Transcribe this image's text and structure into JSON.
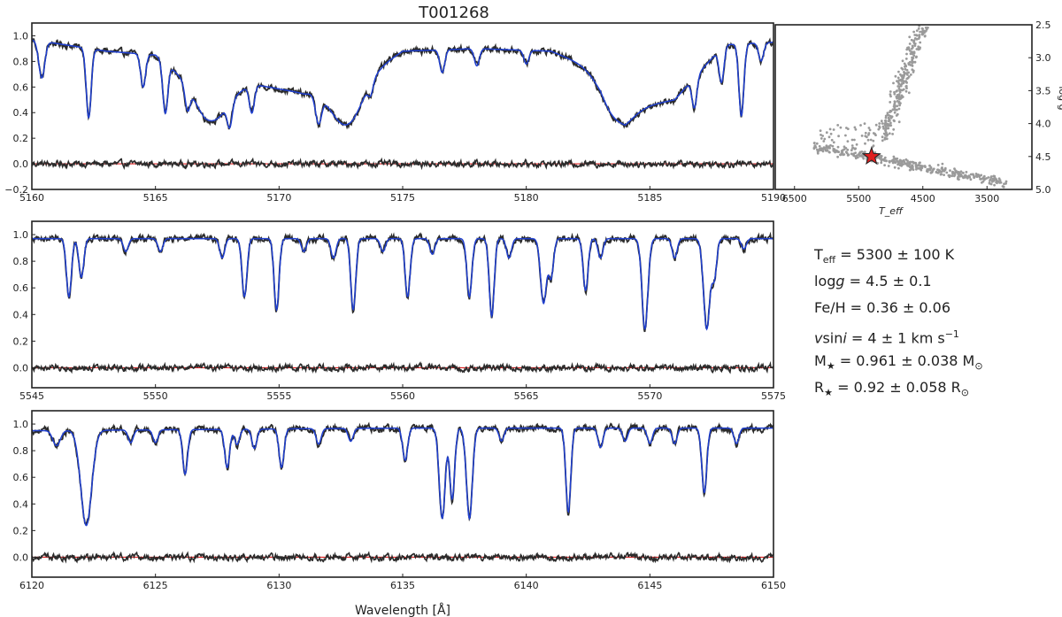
{
  "chart_data": [
    {
      "type": "line",
      "panel": "spectrum-1",
      "title": "T001268",
      "xlim": [
        5160,
        5190
      ],
      "ylim": [
        -0.2,
        1.1
      ],
      "xticks": [
        5160,
        5165,
        5170,
        5175,
        5180,
        5185,
        5190
      ],
      "yticks": [
        -0.2,
        0.0,
        0.2,
        0.4,
        0.6,
        0.8,
        1.0
      ],
      "xtick_labels": [
        "5160",
        "5165",
        "5170",
        "5175",
        "5180",
        "5185",
        "5190"
      ],
      "ytick_labels": [
        "−0.2",
        "0.0",
        "0.2",
        "0.4",
        "0.6",
        "0.8",
        "1.0"
      ],
      "continuum": [
        [
          5160,
          0.97
        ],
        [
          5163,
          0.88
        ],
        [
          5165,
          0.85
        ],
        [
          5167,
          0.55
        ],
        [
          5169,
          0.62
        ],
        [
          5171,
          0.55
        ],
        [
          5173,
          0.62
        ],
        [
          5175,
          0.88
        ],
        [
          5178,
          0.9
        ],
        [
          5181,
          0.88
        ],
        [
          5183,
          0.72
        ],
        [
          5184,
          0.42
        ],
        [
          5186,
          0.5
        ],
        [
          5188,
          0.93
        ],
        [
          5190,
          0.95
        ]
      ],
      "lines": [
        {
          "x": 5160.4,
          "depth": 0.3,
          "width": 0.12
        },
        {
          "x": 5162.3,
          "depth": 0.6,
          "width": 0.1
        },
        {
          "x": 5164.5,
          "depth": 0.3,
          "width": 0.1
        },
        {
          "x": 5165.4,
          "depth": 0.5,
          "width": 0.1
        },
        {
          "x": 5166.3,
          "depth": 0.3,
          "width": 0.1
        },
        {
          "x": 5167.3,
          "depth": 0.4,
          "width": 0.6
        },
        {
          "x": 5168.0,
          "depth": 0.4,
          "width": 0.1
        },
        {
          "x": 5168.9,
          "depth": 0.35,
          "width": 0.1
        },
        {
          "x": 5171.6,
          "depth": 0.4,
          "width": 0.12
        },
        {
          "x": 5172.7,
          "depth": 0.5,
          "width": 0.6
        },
        {
          "x": 5173.7,
          "depth": 0.15,
          "width": 0.1
        },
        {
          "x": 5176.6,
          "depth": 0.2,
          "width": 0.1
        },
        {
          "x": 5178.0,
          "depth": 0.15,
          "width": 0.1
        },
        {
          "x": 5180.0,
          "depth": 0.12,
          "width": 0.1
        },
        {
          "x": 5183.6,
          "depth": 0.35,
          "width": 0.6
        },
        {
          "x": 5186.8,
          "depth": 0.35,
          "width": 0.1
        },
        {
          "x": 5187.9,
          "depth": 0.3,
          "width": 0.1
        },
        {
          "x": 5188.7,
          "depth": 0.6,
          "width": 0.1
        },
        {
          "x": 5189.5,
          "depth": 0.15,
          "width": 0.1
        }
      ]
    },
    {
      "type": "line",
      "panel": "spectrum-2",
      "xlim": [
        5545,
        5575
      ],
      "ylim": [
        -0.15,
        1.1
      ],
      "xticks": [
        5545,
        5550,
        5555,
        5560,
        5565,
        5570,
        5575
      ],
      "yticks": [
        0.0,
        0.2,
        0.4,
        0.6,
        0.8,
        1.0
      ],
      "xtick_labels": [
        "5545",
        "5550",
        "5555",
        "5560",
        "5565",
        "5570",
        "5575"
      ],
      "ytick_labels": [
        "0.0",
        "0.2",
        "0.4",
        "0.6",
        "0.8",
        "1.0"
      ],
      "continuum": [
        [
          5545,
          0.97
        ],
        [
          5575,
          0.97
        ]
      ],
      "lines": [
        {
          "x": 5546.5,
          "depth": 0.45,
          "width": 0.1
        },
        {
          "x": 5547.0,
          "depth": 0.3,
          "width": 0.1
        },
        {
          "x": 5548.8,
          "depth": 0.1,
          "width": 0.1
        },
        {
          "x": 5550.2,
          "depth": 0.1,
          "width": 0.1
        },
        {
          "x": 5552.7,
          "depth": 0.15,
          "width": 0.1
        },
        {
          "x": 5553.6,
          "depth": 0.45,
          "width": 0.1
        },
        {
          "x": 5554.9,
          "depth": 0.55,
          "width": 0.1
        },
        {
          "x": 5556.0,
          "depth": 0.1,
          "width": 0.1
        },
        {
          "x": 5557.2,
          "depth": 0.15,
          "width": 0.1
        },
        {
          "x": 5558.0,
          "depth": 0.55,
          "width": 0.1
        },
        {
          "x": 5559.2,
          "depth": 0.1,
          "width": 0.1
        },
        {
          "x": 5560.2,
          "depth": 0.45,
          "width": 0.1
        },
        {
          "x": 5561.2,
          "depth": 0.12,
          "width": 0.1
        },
        {
          "x": 5562.7,
          "depth": 0.45,
          "width": 0.1
        },
        {
          "x": 5563.6,
          "depth": 0.6,
          "width": 0.1
        },
        {
          "x": 5564.3,
          "depth": 0.15,
          "width": 0.1
        },
        {
          "x": 5565.7,
          "depth": 0.5,
          "width": 0.12
        },
        {
          "x": 5566.0,
          "depth": 0.3,
          "width": 0.1
        },
        {
          "x": 5567.4,
          "depth": 0.4,
          "width": 0.1
        },
        {
          "x": 5568.0,
          "depth": 0.15,
          "width": 0.1
        },
        {
          "x": 5569.8,
          "depth": 0.7,
          "width": 0.12
        },
        {
          "x": 5571.0,
          "depth": 0.15,
          "width": 0.1
        },
        {
          "x": 5572.3,
          "depth": 0.7,
          "width": 0.13
        },
        {
          "x": 5572.6,
          "depth": 0.3,
          "width": 0.1
        },
        {
          "x": 5573.8,
          "depth": 0.08,
          "width": 0.1
        }
      ]
    },
    {
      "type": "line",
      "panel": "spectrum-3",
      "xlabel": "Wavelength [Å]",
      "xlim": [
        6120,
        6150
      ],
      "ylim": [
        -0.15,
        1.1
      ],
      "xticks": [
        6120,
        6125,
        6130,
        6135,
        6140,
        6145,
        6150
      ],
      "yticks": [
        0.0,
        0.2,
        0.4,
        0.6,
        0.8,
        1.0
      ],
      "xtick_labels": [
        "6120",
        "6125",
        "6130",
        "6135",
        "6140",
        "6145",
        "6150"
      ],
      "ytick_labels": [
        "0.0",
        "0.2",
        "0.4",
        "0.6",
        "0.8",
        "1.0"
      ],
      "continuum": [
        [
          6120,
          0.95
        ],
        [
          6135,
          0.97
        ],
        [
          6150,
          0.97
        ]
      ],
      "lines": [
        {
          "x": 6121.0,
          "depth": 0.12,
          "width": 0.15
        },
        {
          "x": 6122.2,
          "depth": 0.75,
          "width": 0.22
        },
        {
          "x": 6124.0,
          "depth": 0.1,
          "width": 0.1
        },
        {
          "x": 6125.0,
          "depth": 0.1,
          "width": 0.1
        },
        {
          "x": 6126.2,
          "depth": 0.35,
          "width": 0.1
        },
        {
          "x": 6127.9,
          "depth": 0.3,
          "width": 0.1
        },
        {
          "x": 6128.3,
          "depth": 0.12,
          "width": 0.1
        },
        {
          "x": 6129.0,
          "depth": 0.15,
          "width": 0.1
        },
        {
          "x": 6130.1,
          "depth": 0.3,
          "width": 0.1
        },
        {
          "x": 6131.6,
          "depth": 0.12,
          "width": 0.1
        },
        {
          "x": 6132.9,
          "depth": 0.1,
          "width": 0.1
        },
        {
          "x": 6135.1,
          "depth": 0.25,
          "width": 0.1
        },
        {
          "x": 6136.6,
          "depth": 0.7,
          "width": 0.12
        },
        {
          "x": 6137.0,
          "depth": 0.55,
          "width": 0.1
        },
        {
          "x": 6137.7,
          "depth": 0.7,
          "width": 0.12
        },
        {
          "x": 6139.0,
          "depth": 0.1,
          "width": 0.1
        },
        {
          "x": 6141.7,
          "depth": 0.65,
          "width": 0.1
        },
        {
          "x": 6143.0,
          "depth": 0.15,
          "width": 0.1
        },
        {
          "x": 6144.0,
          "depth": 0.1,
          "width": 0.1
        },
        {
          "x": 6145.0,
          "depth": 0.12,
          "width": 0.1
        },
        {
          "x": 6146.0,
          "depth": 0.12,
          "width": 0.1
        },
        {
          "x": 6147.2,
          "depth": 0.5,
          "width": 0.1
        },
        {
          "x": 6148.5,
          "depth": 0.12,
          "width": 0.1
        }
      ]
    },
    {
      "type": "scatter",
      "panel": "hr-diagram",
      "xlabel": "T_eff",
      "ylabel": "log g",
      "xlim": [
        6800,
        2800
      ],
      "ylim": [
        5.0,
        2.5
      ],
      "xticks": [
        6500,
        5500,
        4500,
        3500
      ],
      "yticks": [
        2.5,
        3.0,
        3.5,
        4.0,
        4.5,
        5.0
      ],
      "xtick_labels": [
        "6500",
        "5500",
        "4500",
        "3500"
      ],
      "ytick_labels": [
        "2.5",
        "3.0",
        "3.5",
        "4.0",
        "4.5",
        "5.0"
      ],
      "highlight": {
        "teff": 5300,
        "logg": 4.5
      },
      "colors": {
        "points": "#9a9a9a",
        "star": "#e02020"
      }
    }
  ],
  "series_colors": {
    "observed": "#2b2b2b",
    "model": "#1f3fd0",
    "residual_zero": "#e02020"
  },
  "parameters": {
    "teff": {
      "label": "T",
      "sub": "eff",
      "value": " = 5300 ± 100 K"
    },
    "logg": {
      "label": "log",
      "italic": "g",
      "value": " = 4.5 ± 0.1"
    },
    "feh": {
      "label": "Fe/H",
      "value": " = 0.36 ± 0.06"
    },
    "vsini": {
      "italic1": "v",
      "mid": "sin",
      "italic2": "i",
      "value": " = 4 ± 1 km s",
      "sup": "−1"
    },
    "mass": {
      "label": "M",
      "sub": "★",
      "value": " = 0.961 ± 0.038 M",
      "sub2": "⊙"
    },
    "radius": {
      "label": "R",
      "sub": "★",
      "value": " = 0.92 ± 0.058 R",
      "sub2": "⊙"
    }
  }
}
